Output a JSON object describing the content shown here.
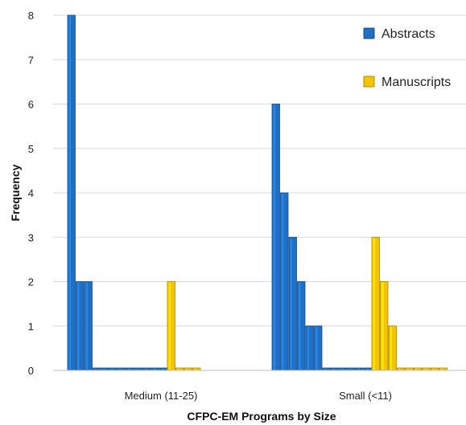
{
  "chart_data": {
    "type": "bar",
    "title": "",
    "xlabel": "CFPC-EM Programs by Size",
    "ylabel": "Frequency",
    "ylim": [
      0,
      8
    ],
    "yticks": [
      0,
      1,
      2,
      3,
      4,
      5,
      6,
      7,
      8
    ],
    "grid": true,
    "legend_position": "top-right",
    "categories": [
      "Medium (11-25)",
      "Small (<11)"
    ],
    "series": [
      {
        "name": "Abstracts",
        "color": "#1f6fc5",
        "values_by_category": [
          [
            8,
            2,
            2,
            0,
            0,
            0,
            0,
            0,
            0,
            0,
            0,
            0
          ],
          [
            6,
            4,
            3,
            2,
            1,
            1,
            0,
            0,
            0,
            0,
            0,
            0
          ]
        ]
      },
      {
        "name": "Manuscripts",
        "color": "#f5c400",
        "values_by_category": [
          [
            2,
            0,
            0,
            0
          ],
          [
            3,
            2,
            1,
            0,
            0,
            0,
            0,
            0,
            0
          ]
        ]
      }
    ]
  }
}
